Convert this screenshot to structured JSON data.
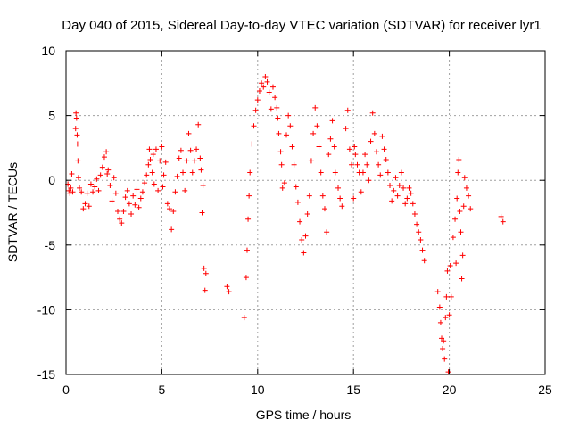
{
  "chart_data": {
    "type": "scatter",
    "title": "Day 040 of 2015, Sidereal Day-to-day VTEC variation (SDTVAR) for receiver lyr1",
    "xlabel": "GPS time / hours",
    "ylabel": "SDTVAR / TECUs",
    "xlim": [
      0,
      25
    ],
    "ylim": [
      -15,
      10
    ],
    "xticks": [
      0,
      5,
      10,
      15,
      20,
      25
    ],
    "yticks": [
      -15,
      -10,
      -5,
      0,
      5,
      10
    ],
    "grid": true,
    "marker": "plus",
    "color": "#ff0000",
    "series": [
      {
        "name": "lyr1",
        "points": [
          [
            0.1,
            -0.3
          ],
          [
            0.15,
            -0.8
          ],
          [
            0.2,
            -1.0
          ],
          [
            0.25,
            -0.6
          ],
          [
            0.3,
            0.5
          ],
          [
            0.35,
            -0.9
          ],
          [
            0.5,
            4.0
          ],
          [
            0.52,
            5.2
          ],
          [
            0.55,
            4.8
          ],
          [
            0.58,
            3.5
          ],
          [
            0.6,
            2.8
          ],
          [
            0.62,
            1.5
          ],
          [
            0.65,
            0.2
          ],
          [
            0.7,
            -0.6
          ],
          [
            0.8,
            -0.9
          ],
          [
            0.9,
            -2.2
          ],
          [
            1.0,
            -1.8
          ],
          [
            1.1,
            -1.0
          ],
          [
            1.2,
            -2.0
          ],
          [
            1.3,
            -0.3
          ],
          [
            1.4,
            -0.9
          ],
          [
            1.5,
            -0.5
          ],
          [
            1.6,
            0.1
          ],
          [
            1.7,
            -0.8
          ],
          [
            1.8,
            0.4
          ],
          [
            1.9,
            1.0
          ],
          [
            2.0,
            1.8
          ],
          [
            2.1,
            2.2
          ],
          [
            2.15,
            0.5
          ],
          [
            2.2,
            0.8
          ],
          [
            2.3,
            -0.4
          ],
          [
            2.4,
            -1.6
          ],
          [
            2.5,
            0.2
          ],
          [
            2.6,
            -1.0
          ],
          [
            2.7,
            -2.4
          ],
          [
            2.8,
            -3.0
          ],
          [
            2.9,
            -3.3
          ],
          [
            3.0,
            -2.4
          ],
          [
            3.1,
            -1.3
          ],
          [
            3.2,
            -0.8
          ],
          [
            3.3,
            -1.8
          ],
          [
            3.4,
            -2.6
          ],
          [
            3.5,
            -1.2
          ],
          [
            3.6,
            -1.9
          ],
          [
            3.7,
            -0.7
          ],
          [
            3.8,
            -2.1
          ],
          [
            3.9,
            -1.4
          ],
          [
            4.0,
            -0.9
          ],
          [
            4.1,
            -0.2
          ],
          [
            4.2,
            0.4
          ],
          [
            4.3,
            1.2
          ],
          [
            4.35,
            2.4
          ],
          [
            4.4,
            1.6
          ],
          [
            4.5,
            0.6
          ],
          [
            4.55,
            2.0
          ],
          [
            4.6,
            -0.3
          ],
          [
            4.7,
            2.4
          ],
          [
            4.8,
            -0.8
          ],
          [
            4.9,
            1.5
          ],
          [
            5.0,
            2.6
          ],
          [
            5.05,
            -0.5
          ],
          [
            5.1,
            0.4
          ],
          [
            5.2,
            1.4
          ],
          [
            5.3,
            -1.8
          ],
          [
            5.4,
            -2.2
          ],
          [
            5.5,
            -3.8
          ],
          [
            5.6,
            -2.4
          ],
          [
            5.7,
            -0.9
          ],
          [
            5.8,
            0.3
          ],
          [
            5.9,
            1.7
          ],
          [
            6.0,
            2.3
          ],
          [
            6.1,
            0.6
          ],
          [
            6.2,
            -0.8
          ],
          [
            6.3,
            1.5
          ],
          [
            6.4,
            3.6
          ],
          [
            6.5,
            2.3
          ],
          [
            6.6,
            0.6
          ],
          [
            6.7,
            1.5
          ],
          [
            6.8,
            2.4
          ],
          [
            6.9,
            4.3
          ],
          [
            7.0,
            1.7
          ],
          [
            7.05,
            0.8
          ],
          [
            7.1,
            -2.5
          ],
          [
            7.15,
            -0.4
          ],
          [
            7.2,
            -6.8
          ],
          [
            7.25,
            -8.5
          ],
          [
            7.3,
            -7.2
          ],
          [
            8.4,
            -8.2
          ],
          [
            8.5,
            -8.6
          ],
          [
            9.3,
            -10.6
          ],
          [
            9.4,
            -7.5
          ],
          [
            9.45,
            -5.4
          ],
          [
            9.5,
            -3.0
          ],
          [
            9.55,
            -1.2
          ],
          [
            9.6,
            0.6
          ],
          [
            9.7,
            2.8
          ],
          [
            9.8,
            4.2
          ],
          [
            9.9,
            5.4
          ],
          [
            10.0,
            6.2
          ],
          [
            10.1,
            6.9
          ],
          [
            10.2,
            7.5
          ],
          [
            10.3,
            7.2
          ],
          [
            10.4,
            8.0
          ],
          [
            10.5,
            7.6
          ],
          [
            10.6,
            6.8
          ],
          [
            10.7,
            5.5
          ],
          [
            10.8,
            7.2
          ],
          [
            10.9,
            6.4
          ],
          [
            11.0,
            5.6
          ],
          [
            11.05,
            4.8
          ],
          [
            11.1,
            3.6
          ],
          [
            11.2,
            2.2
          ],
          [
            11.25,
            1.2
          ],
          [
            11.3,
            -0.6
          ],
          [
            11.4,
            -0.2
          ],
          [
            11.5,
            3.5
          ],
          [
            11.6,
            5.0
          ],
          [
            11.7,
            4.2
          ],
          [
            11.8,
            2.6
          ],
          [
            11.9,
            1.2
          ],
          [
            12.0,
            -0.5
          ],
          [
            12.1,
            -1.7
          ],
          [
            12.2,
            -3.2
          ],
          [
            12.3,
            -4.6
          ],
          [
            12.4,
            -5.6
          ],
          [
            12.5,
            -4.3
          ],
          [
            12.6,
            -2.6
          ],
          [
            12.7,
            -1.2
          ],
          [
            12.8,
            1.5
          ],
          [
            12.9,
            3.6
          ],
          [
            13.0,
            5.6
          ],
          [
            13.1,
            4.2
          ],
          [
            13.2,
            2.6
          ],
          [
            13.3,
            0.6
          ],
          [
            13.4,
            -1.2
          ],
          [
            13.5,
            -2.2
          ],
          [
            13.6,
            -4.0
          ],
          [
            13.7,
            2.0
          ],
          [
            13.8,
            3.2
          ],
          [
            13.9,
            4.6
          ],
          [
            14.0,
            2.6
          ],
          [
            14.05,
            0.6
          ],
          [
            14.2,
            -0.6
          ],
          [
            14.3,
            -1.4
          ],
          [
            14.4,
            -2.0
          ],
          [
            14.6,
            4.0
          ],
          [
            14.7,
            5.4
          ],
          [
            14.8,
            2.4
          ],
          [
            14.9,
            1.2
          ],
          [
            15.0,
            -1.4
          ],
          [
            15.05,
            2.6
          ],
          [
            15.1,
            2.0
          ],
          [
            15.2,
            1.2
          ],
          [
            15.3,
            0.6
          ],
          [
            15.4,
            -0.9
          ],
          [
            15.5,
            0.6
          ],
          [
            15.6,
            2.0
          ],
          [
            15.7,
            1.2
          ],
          [
            15.8,
            0.0
          ],
          [
            15.9,
            3.0
          ],
          [
            16.0,
            5.2
          ],
          [
            16.1,
            3.6
          ],
          [
            16.2,
            2.2
          ],
          [
            16.3,
            1.2
          ],
          [
            16.4,
            0.4
          ],
          [
            16.5,
            3.4
          ],
          [
            16.6,
            2.4
          ],
          [
            16.7,
            1.6
          ],
          [
            16.8,
            0.6
          ],
          [
            16.9,
            -0.4
          ],
          [
            17.0,
            -1.6
          ],
          [
            17.1,
            -0.8
          ],
          [
            17.2,
            0.2
          ],
          [
            17.3,
            -1.2
          ],
          [
            17.4,
            -0.4
          ],
          [
            17.5,
            0.6
          ],
          [
            17.6,
            -0.6
          ],
          [
            17.7,
            -1.8
          ],
          [
            17.8,
            -1.4
          ],
          [
            17.9,
            -0.6
          ],
          [
            18.0,
            -1.0
          ],
          [
            18.1,
            -1.8
          ],
          [
            18.2,
            -2.6
          ],
          [
            18.3,
            -3.4
          ],
          [
            18.4,
            -4.0
          ],
          [
            18.5,
            -4.6
          ],
          [
            18.6,
            -5.4
          ],
          [
            18.7,
            -6.2
          ],
          [
            19.4,
            -8.6
          ],
          [
            19.5,
            -9.8
          ],
          [
            19.55,
            -11.0
          ],
          [
            19.6,
            -12.2
          ],
          [
            19.65,
            -13.0
          ],
          [
            19.7,
            -12.4
          ],
          [
            19.75,
            -13.8
          ],
          [
            19.8,
            -10.6
          ],
          [
            19.85,
            -9.0
          ],
          [
            19.9,
            -7.0
          ],
          [
            19.95,
            -14.8
          ],
          [
            20.0,
            -10.4
          ],
          [
            20.05,
            -6.6
          ],
          [
            20.1,
            -9.0
          ],
          [
            20.2,
            -4.4
          ],
          [
            20.3,
            -3.0
          ],
          [
            20.35,
            -6.4
          ],
          [
            20.4,
            -1.4
          ],
          [
            20.45,
            0.6
          ],
          [
            20.5,
            1.6
          ],
          [
            20.55,
            -2.4
          ],
          [
            20.6,
            -4.0
          ],
          [
            20.65,
            -7.6
          ],
          [
            20.7,
            -5.8
          ],
          [
            20.75,
            -2.0
          ],
          [
            20.8,
            0.2
          ],
          [
            20.9,
            -0.6
          ],
          [
            21.0,
            -1.2
          ],
          [
            21.1,
            -2.2
          ],
          [
            22.7,
            -2.8
          ],
          [
            22.8,
            -3.2
          ]
        ]
      }
    ]
  }
}
